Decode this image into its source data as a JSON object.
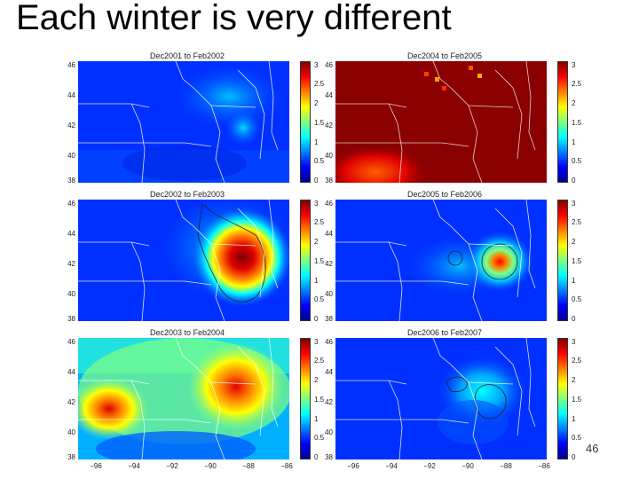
{
  "slide": {
    "title": "Each winter is very different",
    "page_number": "46"
  },
  "panels": [
    {
      "title": "Dec2001 to Feb2002"
    },
    {
      "title": "Dec2004 to Feb2005"
    },
    {
      "title": "Dec2002 to Feb2003"
    },
    {
      "title": "Dec2005 to Feb2006"
    },
    {
      "title": "Dec2003 to Feb2004"
    },
    {
      "title": "Dec2006 to Feb2007"
    }
  ],
  "y_ticks": [
    "46",
    "44",
    "42",
    "40",
    "38"
  ],
  "x_ticks": [
    "−96",
    "−94",
    "−92",
    "−90",
    "−88",
    "−86"
  ],
  "colorbar_ticks": [
    "3",
    "2.5",
    "2",
    "1.5",
    "1",
    "0.5",
    "0"
  ],
  "colormap": [
    "#00008f",
    "#0000ff",
    "#0080ff",
    "#00ffff",
    "#80ff80",
    "#ffff00",
    "#ff8000",
    "#ff0000",
    "#800000"
  ]
}
